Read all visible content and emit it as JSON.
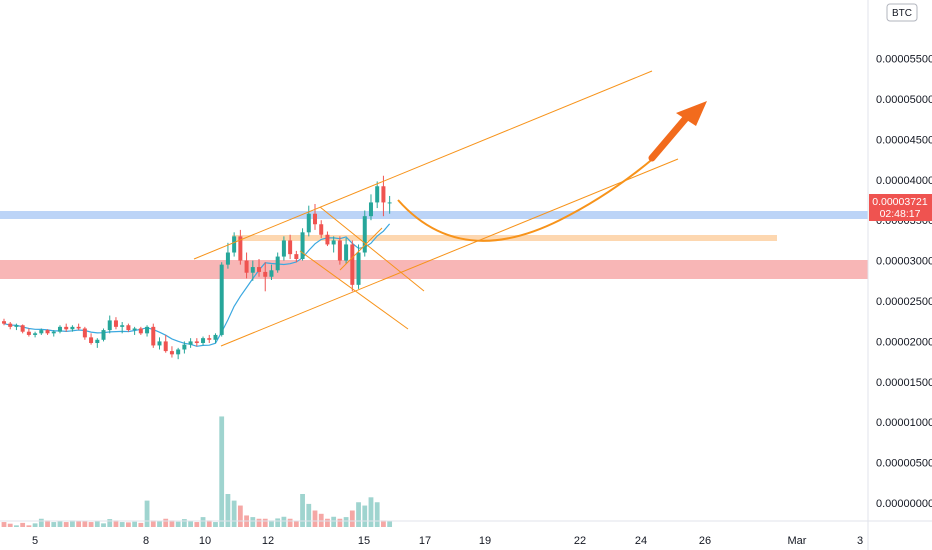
{
  "chart_data": {
    "type": "candlestick",
    "currency_badge": "BTC",
    "price_axis": {
      "min": 0,
      "max": 6.1e-05,
      "ticks": [
        "0.00005500",
        "0.00005000",
        "0.00004500",
        "0.00004000",
        "0.00003500",
        "0.00003000",
        "0.00002500",
        "0.00002000",
        "0.00001500",
        "0.00001000",
        "0.00000500",
        "0.00000000"
      ]
    },
    "time_axis": {
      "ticks": [
        "5",
        "8",
        "10",
        "12",
        "15",
        "17",
        "19",
        "22",
        "24",
        "26",
        "Mar",
        "3"
      ]
    },
    "last_price": {
      "label": "0.00003721",
      "countdown": "02:48:17",
      "value": 3.721e-05
    },
    "candles": [
      [
        2.25,
        2.28,
        2.2,
        2.22
      ],
      [
        2.22,
        2.24,
        2.15,
        2.18
      ],
      [
        2.18,
        2.22,
        2.14,
        2.2
      ],
      [
        2.2,
        2.21,
        2.1,
        2.12
      ],
      [
        2.12,
        2.16,
        2.06,
        2.08
      ],
      [
        2.08,
        2.12,
        2.05,
        2.1
      ],
      [
        2.1,
        2.16,
        2.08,
        2.14
      ],
      [
        2.14,
        2.15,
        2.08,
        2.1
      ],
      [
        2.1,
        2.14,
        2.06,
        2.12
      ],
      [
        2.12,
        2.2,
        2.1,
        2.18
      ],
      [
        2.18,
        2.22,
        2.12,
        2.15
      ],
      [
        2.15,
        2.2,
        2.12,
        2.18
      ],
      [
        2.18,
        2.22,
        2.14,
        2.16
      ],
      [
        2.16,
        2.18,
        2.02,
        2.05
      ],
      [
        2.05,
        2.1,
        1.96,
        1.98
      ],
      [
        1.98,
        2.04,
        1.92,
        2.02
      ],
      [
        2.02,
        2.16,
        2.0,
        2.14
      ],
      [
        2.14,
        2.32,
        2.1,
        2.26
      ],
      [
        2.26,
        2.3,
        2.15,
        2.18
      ],
      [
        2.18,
        2.24,
        2.1,
        2.2
      ],
      [
        2.2,
        2.22,
        2.12,
        2.14
      ],
      [
        2.14,
        2.18,
        2.08,
        2.16
      ],
      [
        2.16,
        2.18,
        2.08,
        2.1
      ],
      [
        2.1,
        2.2,
        2.06,
        2.18
      ],
      [
        2.18,
        2.22,
        1.92,
        1.95
      ],
      [
        1.95,
        2.05,
        1.9,
        2.0
      ],
      [
        2.0,
        2.08,
        1.86,
        1.88
      ],
      [
        1.88,
        1.94,
        1.8,
        1.84
      ],
      [
        1.84,
        1.92,
        1.78,
        1.9
      ],
      [
        1.9,
        2.0,
        1.85,
        1.96
      ],
      [
        1.96,
        2.04,
        1.92,
        2.0
      ],
      [
        2.0,
        2.04,
        1.94,
        1.98
      ],
      [
        1.98,
        2.06,
        1.95,
        2.04
      ],
      [
        2.04,
        2.08,
        1.98,
        2.02
      ],
      [
        2.02,
        2.1,
        1.98,
        2.08
      ],
      [
        2.08,
        2.98,
        2.06,
        2.95
      ],
      [
        2.95,
        3.22,
        2.9,
        3.1
      ],
      [
        3.1,
        3.35,
        3.05,
        3.3
      ],
      [
        3.3,
        3.38,
        2.95,
        3.0
      ],
      [
        3.0,
        3.1,
        2.78,
        2.85
      ],
      [
        2.85,
        3.0,
        2.75,
        2.92
      ],
      [
        2.92,
        3.02,
        2.8,
        2.86
      ],
      [
        2.86,
        2.98,
        2.62,
        2.8
      ],
      [
        2.8,
        2.95,
        2.76,
        2.88
      ],
      [
        2.88,
        3.1,
        2.85,
        3.05
      ],
      [
        3.05,
        3.3,
        3.0,
        3.25
      ],
      [
        3.25,
        3.32,
        3.02,
        3.08
      ],
      [
        3.08,
        3.12,
        2.98,
        3.02
      ],
      [
        3.02,
        3.4,
        3.0,
        3.35
      ],
      [
        3.35,
        3.68,
        3.3,
        3.58
      ],
      [
        3.58,
        3.7,
        3.38,
        3.45
      ],
      [
        3.45,
        3.5,
        3.28,
        3.32
      ],
      [
        3.32,
        3.36,
        3.18,
        3.2
      ],
      [
        3.2,
        3.3,
        3.1,
        3.25
      ],
      [
        3.25,
        3.3,
        2.95,
        3.0
      ],
      [
        3.0,
        3.28,
        2.96,
        3.2
      ],
      [
        3.2,
        3.25,
        2.62,
        2.7
      ],
      [
        2.7,
        3.2,
        2.65,
        3.1
      ],
      [
        3.1,
        3.62,
        3.05,
        3.55
      ],
      [
        3.55,
        3.82,
        3.5,
        3.72
      ],
      [
        3.72,
        3.98,
        3.65,
        3.92
      ],
      [
        3.92,
        4.05,
        3.55,
        3.72
      ],
      [
        3.72,
        3.8,
        3.58,
        3.72
      ]
    ],
    "volumes": [
      0.3,
      0.2,
      0.1,
      0.25,
      0.1,
      0.22,
      0.5,
      0.4,
      0.3,
      0.38,
      0.3,
      0.4,
      0.36,
      0.35,
      0.3,
      0.36,
      0.22,
      0.48,
      0.4,
      0.3,
      0.28,
      0.32,
      0.25,
      1.6,
      0.4,
      0.38,
      0.5,
      0.4,
      0.32,
      0.48,
      0.38,
      0.3,
      0.6,
      0.4,
      0.3,
      6.7,
      2.0,
      1.6,
      1.3,
      0.7,
      0.6,
      0.5,
      0.5,
      0.4,
      0.52,
      0.62,
      0.5,
      0.38,
      2.0,
      1.4,
      1.0,
      0.8,
      0.5,
      0.62,
      0.5,
      0.6,
      1.0,
      1.5,
      1.3,
      1.8,
      1.5,
      0.4,
      0.38
    ]
  },
  "colors": {
    "up": "#26a69a",
    "down": "#ef5350",
    "drawing": "#f7931a",
    "ma": "#3ba8e0"
  }
}
